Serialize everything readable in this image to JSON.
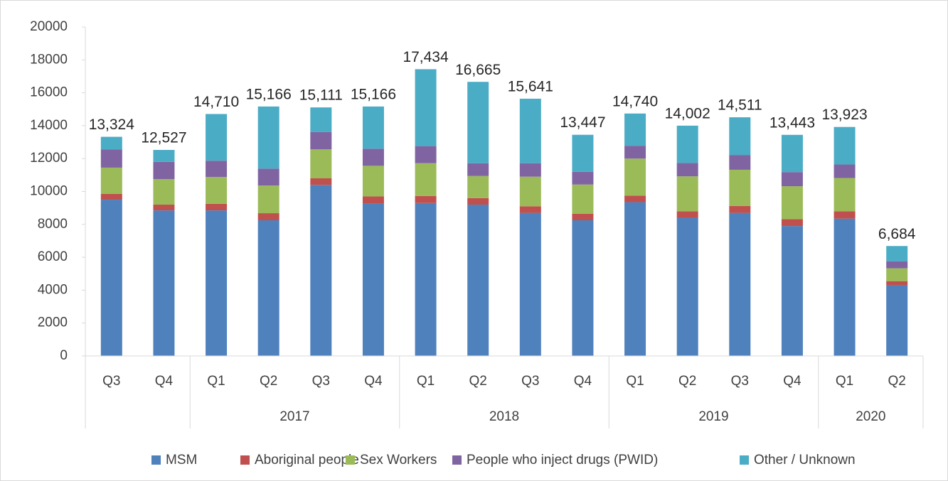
{
  "chart_data": {
    "type": "stacked_bar",
    "categories": [
      "Q3",
      "Q4",
      "Q1",
      "Q2",
      "Q3",
      "Q4",
      "Q1",
      "Q2",
      "Q3",
      "Q4",
      "Q1",
      "Q2",
      "Q3",
      "Q4",
      "Q1",
      "Q2"
    ],
    "years": [
      null,
      null,
      "2017",
      "2017",
      "2017",
      "2017",
      "2018",
      "2018",
      "2018",
      "2018",
      "2019",
      "2019",
      "2019",
      "2019",
      "2020",
      "2020"
    ],
    "series": [
      {
        "name": "MSM",
        "color": "#4f81bd",
        "values": [
          9500,
          8850,
          8850,
          8250,
          10400,
          9250,
          9300,
          9200,
          8700,
          8250,
          9350,
          8400,
          8700,
          7900,
          8350,
          4300
        ]
      },
      {
        "name": "Aboriginal people",
        "color": "#c0504d",
        "values": [
          350,
          350,
          400,
          430,
          400,
          450,
          430,
          400,
          400,
          400,
          400,
          400,
          420,
          420,
          450,
          250
        ]
      },
      {
        "name": "Sex Workers",
        "color": "#9bbb59",
        "values": [
          1600,
          1550,
          1630,
          1680,
          1770,
          1860,
          1990,
          1340,
          1800,
          1770,
          2250,
          2120,
          2200,
          2000,
          2020,
          780
        ]
      },
      {
        "name": "People who inject drugs (PWID)",
        "color": "#8064a2",
        "values": [
          1100,
          1050,
          990,
          1030,
          1040,
          1040,
          1040,
          780,
          820,
          780,
          780,
          820,
          900,
          860,
          820,
          430
        ]
      },
      {
        "name": "Other / Unknown",
        "color": "#4bacc6",
        "values": [
          774,
          727,
          2840,
          3776,
          1501,
          2566,
          4674,
          4945,
          3921,
          2247,
          1960,
          2262,
          2291,
          2263,
          2283,
          924
        ]
      }
    ],
    "totals": [
      13324,
      12527,
      14710,
      15166,
      15111,
      15166,
      17434,
      16665,
      15641,
      13447,
      14740,
      14002,
      14511,
      13443,
      13923,
      6684
    ],
    "total_labels": [
      "13,324",
      "12,527",
      "14,710",
      "15,166",
      "15,111",
      "15,166",
      "17,434",
      "16,665",
      "15,641",
      "13,447",
      "14,740",
      "14,002",
      "14,511",
      "13,443",
      "13,923",
      "6,684"
    ],
    "ylim": [
      0,
      20000
    ],
    "yticks": [
      0,
      2000,
      4000,
      6000,
      8000,
      10000,
      12000,
      14000,
      16000,
      18000,
      20000
    ],
    "grid": false
  }
}
